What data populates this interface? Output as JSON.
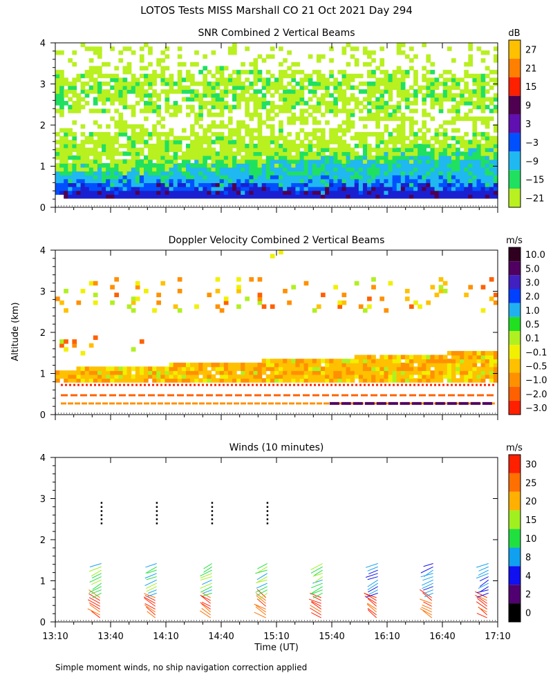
{
  "figure": {
    "title": "LOTOS Tests MISS Marshall CO  21 Oct 2021 Day 294",
    "ylabel": "Altitude (km)",
    "xlabel": "Time (UT)",
    "footnote": "Simple moment winds, no ship navigation correction applied",
    "time_ticks": [
      "13:10",
      "13:40",
      "14:10",
      "14:40",
      "15:10",
      "15:40",
      "16:10",
      "16:40",
      "17:10"
    ],
    "altitude_ticks": [
      "0",
      "1",
      "2",
      "3",
      "4"
    ]
  },
  "chart_data": [
    {
      "type": "heatmap",
      "title": "SNR Combined 2 Vertical Beams",
      "xlabel": "Time (UT)",
      "ylabel": "Altitude (km)",
      "xlim": [
        "13:10",
        "17:10"
      ],
      "ylim": [
        0,
        4
      ],
      "colorbar": {
        "unit": "dB",
        "labels": [
          "27",
          "21",
          "15",
          "9",
          "3",
          "−3",
          "−9",
          "−15",
          "−21"
        ],
        "colors": [
          "#ffc000",
          "#ff8000",
          "#ff2000",
          "#500050",
          "#6010b0",
          "#0050ff",
          "#20b8f0",
          "#20e060",
          "#b8f020"
        ]
      },
      "bands": [
        {
          "alt": [
            0.25,
            0.42
          ],
          "value": -3,
          "color": "#1a30d8"
        },
        {
          "alt": [
            0.42,
            0.62
          ],
          "value": -9,
          "color": "#20b8f0"
        },
        {
          "alt": [
            0.62,
            1.0
          ],
          "value": -15,
          "color": "#20e060"
        },
        {
          "alt": [
            1.0,
            1.5
          ],
          "value": -21,
          "color": "#b8f020"
        },
        {
          "alt": [
            2.4,
            3.1
          ],
          "value": -21,
          "color": "#b8f020"
        }
      ]
    },
    {
      "type": "heatmap",
      "title": "Doppler Velocity Combined 2 Vertical Beams",
      "xlabel": "Time (UT)",
      "ylabel": "Altitude (km)",
      "xlim": [
        "13:10",
        "17:10"
      ],
      "ylim": [
        0,
        4
      ],
      "colorbar": {
        "unit": "m/s",
        "labels": [
          "10.0",
          "5.0",
          "3.0",
          "2.0",
          "1.0",
          "0.5",
          "0.1",
          "−0.1",
          "−0.5",
          "−1.0",
          "−2.0",
          "−3.0"
        ],
        "colors": [
          "#300020",
          "#500060",
          "#4020c0",
          "#0040ff",
          "#20b0f0",
          "#20e020",
          "#b0f020",
          "#f0f000",
          "#ffc000",
          "#ff9000",
          "#ff6000",
          "#ff2000"
        ]
      },
      "bands": [
        {
          "alt": [
            0.25,
            0.3
          ],
          "value": -1.0,
          "color": "#ff9000"
        },
        {
          "alt": [
            0.45,
            0.5
          ],
          "value": -2.0,
          "color": "#ff6000"
        },
        {
          "alt": [
            0.75,
            1.5
          ],
          "value": -0.5,
          "color": "#ffc000"
        }
      ]
    },
    {
      "type": "scatter",
      "title": "Winds (10 minutes)",
      "xlabel": "Time (UT)",
      "ylabel": "Altitude (km)",
      "xlim": [
        "13:10",
        "17:10"
      ],
      "ylim": [
        0,
        4
      ],
      "colorbar": {
        "unit": "m/s",
        "labels": [
          "30",
          "25",
          "20",
          "15",
          "10",
          "8",
          "4",
          "2",
          "0"
        ],
        "colors": [
          "#ff2000",
          "#ff7000",
          "#ffb000",
          "#a0f020",
          "#20e040",
          "#10a0f0",
          "#1010f0",
          "#500070",
          "#000000"
        ]
      },
      "profile_times": [
        "13:35",
        "14:05",
        "14:35",
        "15:05",
        "15:35",
        "16:05",
        "16:35",
        "17:05"
      ]
    }
  ]
}
